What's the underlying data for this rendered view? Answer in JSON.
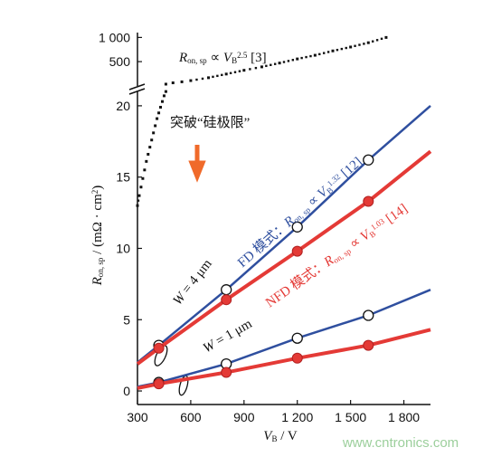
{
  "chart_data": [
    {
      "type": "line",
      "log_scale": true,
      "xlim": [
        300,
        1950
      ],
      "ylim": [
        230,
        1150
      ],
      "yticks": [
        {
          "value": 1000,
          "label": "1 000"
        },
        500
      ],
      "series": [
        {
          "style": "dotted",
          "color": "#111111",
          "x": [
            460,
            500,
            550,
            600,
            700,
            800,
            900,
            1000,
            1100,
            1200,
            1300,
            1400,
            1500,
            1600,
            1700
          ],
          "values": [
            262,
            272,
            280,
            290,
            315,
            350,
            390,
            430,
            480,
            540,
            600,
            680,
            760,
            860,
            1000
          ]
        }
      ],
      "annotations": [
        {
          "parts": [
            {
              "text": "R",
              "style": "italic"
            },
            {
              "text": "on, sp",
              "style": "sub"
            },
            {
              "text": " ∝ ",
              "style": "normal"
            },
            {
              "text": "V",
              "style": "italic"
            },
            {
              "text": "B",
              "style": "sub"
            },
            {
              "text": "2.5",
              "style": "sup"
            },
            {
              "text": " [3]",
              "style": "normal"
            }
          ],
          "color": "#111111"
        }
      ]
    },
    {
      "type": "line",
      "xlim": [
        300,
        1950
      ],
      "ylim": [
        -0.95,
        21.2
      ],
      "xticks": [
        300,
        600,
        900,
        {
          "value": 1200,
          "label": "1 200"
        },
        {
          "value": 1500,
          "label": "1 500"
        },
        {
          "value": 1800,
          "label": "1 800"
        }
      ],
      "yticks": [
        0,
        5,
        10,
        15,
        20
      ],
      "xlabel": [
        {
          "text": "V",
          "style": "italic"
        },
        {
          "text": "B",
          "style": "sub"
        },
        {
          "text": " / V",
          "style": "normal"
        }
      ],
      "ylabel": [
        {
          "text": "R",
          "style": "italic"
        },
        {
          "text": "on, sp",
          "style": "sub"
        },
        {
          "text": " / (mΩ · cm",
          "style": "normal"
        },
        {
          "text": "2",
          "style": "sup"
        },
        {
          "text": ")",
          "style": "normal"
        }
      ],
      "series": [
        {
          "style": "dotted",
          "color": "#111111",
          "x": [
            300,
            310,
            320,
            330,
            340,
            350,
            360,
            370,
            380,
            390,
            400,
            410,
            420,
            430,
            440,
            450,
            460
          ],
          "values": [
            13,
            13.7,
            14.3,
            14.9,
            15.5,
            16.1,
            16.6,
            17.1,
            17.6,
            18.1,
            18.6,
            19.1,
            19.5,
            19.9,
            20.3,
            20.7,
            21
          ]
        },
        {
          "style": "solid",
          "marker": "open",
          "color": "#2f4f9f",
          "width": 2.5,
          "x": [
            300,
            420,
            800,
            1200,
            1600,
            1950
          ],
          "values": [
            2,
            3.2,
            7.1,
            11.5,
            16.2,
            20
          ]
        },
        {
          "style": "solid",
          "marker": "filled",
          "color": "#e43a36",
          "width": 4,
          "x": [
            300,
            420,
            800,
            1200,
            1600,
            1950
          ],
          "values": [
            1.9,
            3,
            6.4,
            9.8,
            13.3,
            16.8
          ]
        },
        {
          "style": "solid",
          "marker": "open",
          "color": "#2f4f9f",
          "width": 2.5,
          "x": [
            300,
            420,
            800,
            1200,
            1600,
            1950
          ],
          "values": [
            0.3,
            0.6,
            1.9,
            3.7,
            5.3,
            7.1
          ]
        },
        {
          "style": "solid",
          "marker": "filled",
          "color": "#e43a36",
          "width": 4,
          "x": [
            300,
            420,
            800,
            1200,
            1600,
            1950
          ],
          "values": [
            0.2,
            0.5,
            1.3,
            2.3,
            3.2,
            4.3
          ]
        }
      ],
      "annotations": [
        {
          "parts": [
            {
              "text": "突破“硅极限”",
              "style": "normal"
            }
          ],
          "color": "#111111"
        },
        {
          "parts": [
            {
              "text": "FD 模式：",
              "style": "normal"
            },
            {
              "text": "R",
              "style": "italic"
            },
            {
              "text": "on, sp",
              "style": "sub"
            },
            {
              "text": " ∝ ",
              "style": "normal"
            },
            {
              "text": "V",
              "style": "italic"
            },
            {
              "text": "B",
              "style": "sub"
            },
            {
              "text": "1.32",
              "style": "sup"
            },
            {
              "text": " [12]",
              "style": "normal"
            }
          ],
          "color": "#2f4f9f"
        },
        {
          "parts": [
            {
              "text": "NFD 模式：",
              "style": "normal"
            },
            {
              "text": "R",
              "style": "italic"
            },
            {
              "text": "on, sp",
              "style": "sub"
            },
            {
              "text": " ∝ ",
              "style": "normal"
            },
            {
              "text": "V",
              "style": "italic"
            },
            {
              "text": "B",
              "style": "sub"
            },
            {
              "text": "1.03",
              "style": "sup"
            },
            {
              "text": " [14]",
              "style": "normal"
            }
          ],
          "color": "#e43a36"
        },
        {
          "parts": [
            {
              "text": "W",
              "style": "italic"
            },
            {
              "text": " = 4 μm",
              "style": "normal"
            }
          ],
          "color": "#111111"
        },
        {
          "parts": [
            {
              "text": "W",
              "style": "italic"
            },
            {
              "text": " = 1 μm",
              "style": "normal"
            }
          ],
          "color": "#111111"
        }
      ]
    }
  ],
  "watermark": "www.cntronics.com"
}
